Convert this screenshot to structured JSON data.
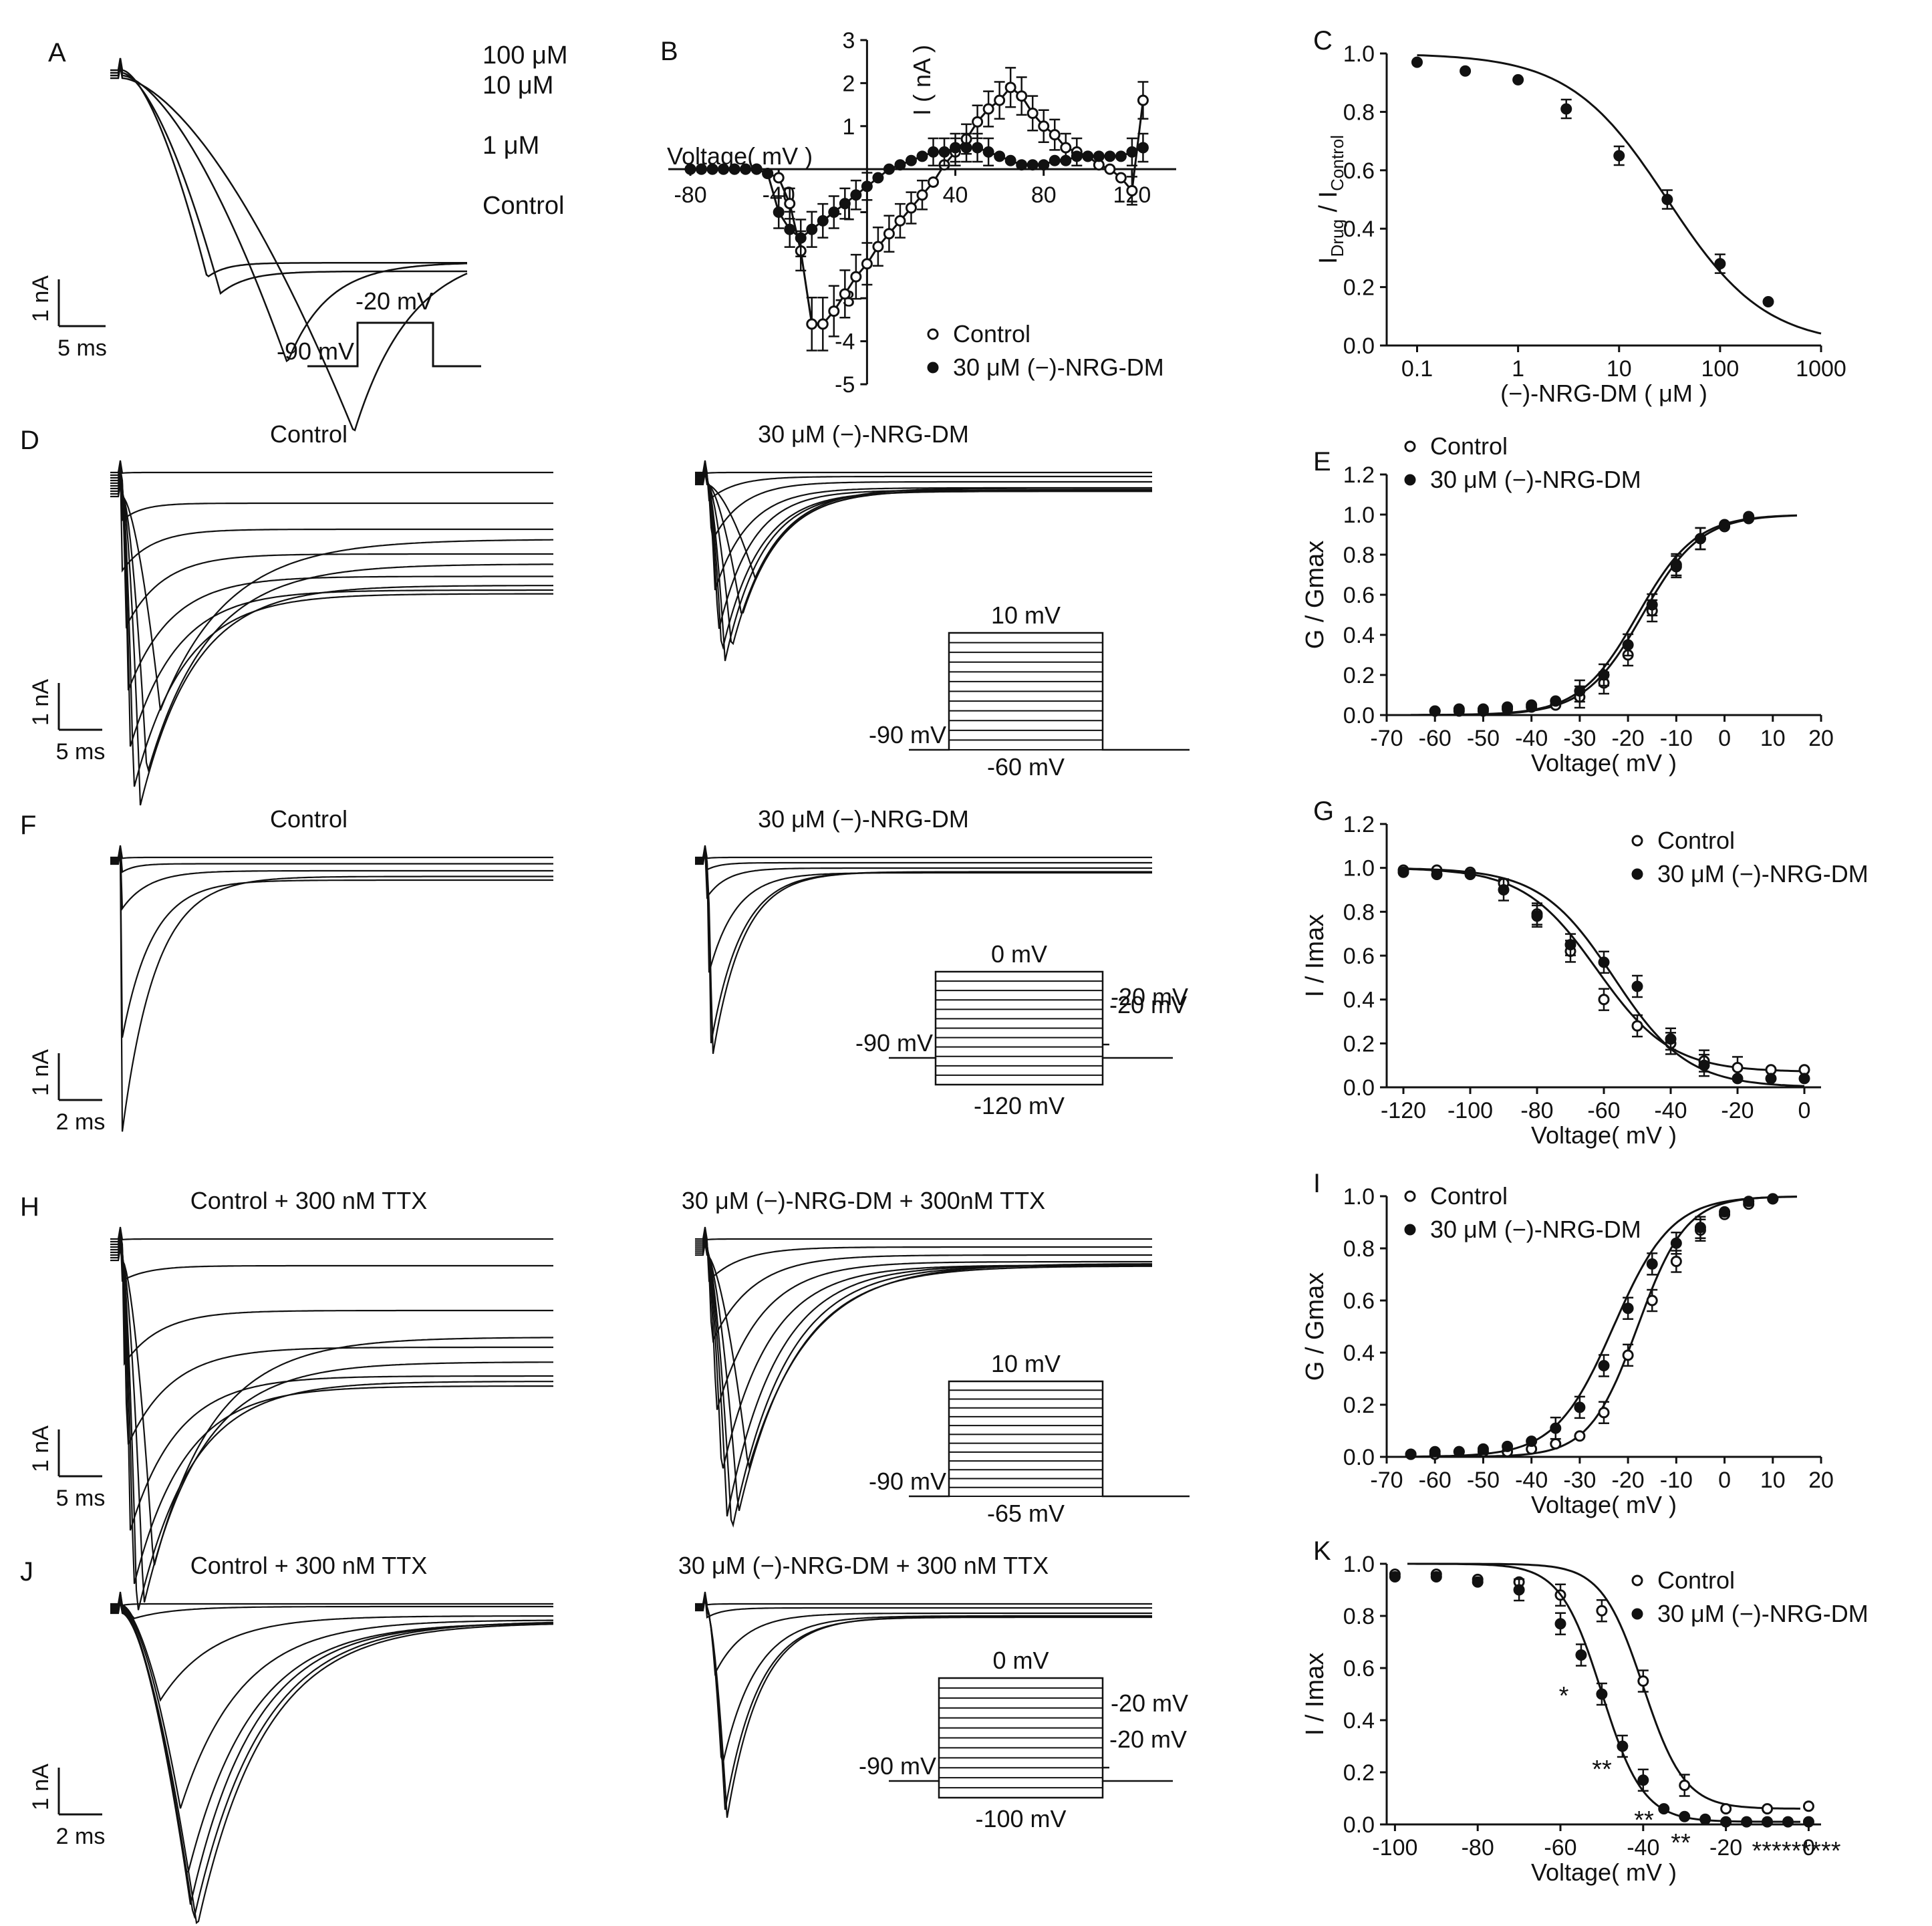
{
  "panels": {
    "A": {
      "letter": "A",
      "labels": [
        "100 μM",
        "10 μM",
        "1 μM",
        "Control"
      ],
      "scale_current": "1 nA",
      "scale_time": "5 ms",
      "protocol": {
        "step": "-20 mV",
        "hold": "-90 mV"
      }
    },
    "D": {
      "letter": "D",
      "left_title": "Control",
      "right_title": "30 μM (−)-NRG-DM",
      "scale_current": "1 nA",
      "scale_time": "5 ms",
      "protocol": {
        "top": "10 mV",
        "bottom": "-60 mV",
        "hold": "-90 mV"
      }
    },
    "F": {
      "letter": "F",
      "left_title": "Control",
      "right_title": "30 μM (−)-NRG-DM",
      "scale_current": "1 nA",
      "scale_time": "2 ms",
      "protocol": {
        "top": "0 mV",
        "bottom": "-120 mV",
        "hold": "-90 mV",
        "test": "-20 mV"
      }
    },
    "H": {
      "letter": "H",
      "left_title": "Control + 300 nM TTX",
      "right_title": "30 μM (−)-NRG-DM + 300nM TTX",
      "scale_current": "1 nA",
      "scale_time": "5 ms",
      "protocol": {
        "top": "10 mV",
        "bottom": "-65 mV",
        "hold": "-90 mV"
      }
    },
    "J": {
      "letter": "J",
      "left_title": "Control + 300 nM TTX",
      "right_title": "30 μM (−)-NRG-DM + 300 nM TTX",
      "scale_current": "1 nA",
      "scale_time": "2 ms",
      "protocol": {
        "top": "0 mV",
        "bottom": "-100 mV",
        "hold": "-90 mV",
        "test": "-20 mV"
      }
    }
  },
  "chart_data": [
    {
      "id": "B",
      "letter": "B",
      "type": "line",
      "xlabel": "Voltage( mV )",
      "ylabel": "I ( nA )",
      "xlim": [
        -90,
        140
      ],
      "ylim": [
        -5,
        3
      ],
      "xticks": [
        -80,
        -40,
        40,
        80,
        120
      ],
      "yticks": [
        -5,
        -4,
        -3,
        -1,
        1,
        2,
        3
      ],
      "series": [
        {
          "name": "Control",
          "marker": "open",
          "x": [
            -80,
            -75,
            -70,
            -65,
            -60,
            -55,
            -50,
            -45,
            -40,
            -35,
            -30,
            -25,
            -20,
            -15,
            -10,
            -5,
            0,
            5,
            10,
            15,
            20,
            25,
            30,
            35,
            40,
            45,
            50,
            55,
            60,
            65,
            70,
            75,
            80,
            85,
            90,
            95,
            100,
            105,
            110,
            115,
            120,
            125
          ],
          "y": [
            0,
            0,
            0,
            0,
            0,
            0,
            0,
            -0.1,
            -0.2,
            -0.8,
            -1.9,
            -3.6,
            -3.6,
            -3.3,
            -2.9,
            -2.5,
            -2.2,
            -1.8,
            -1.5,
            -1.2,
            -0.9,
            -0.6,
            -0.3,
            0.1,
            0.4,
            0.7,
            1.1,
            1.4,
            1.6,
            1.9,
            1.7,
            1.3,
            1.0,
            0.8,
            0.5,
            0.4,
            0.3,
            0.1,
            0,
            -0.2,
            -0.5,
            1.6
          ]
        },
        {
          "name": "30 μM (−)-NRG-DM",
          "marker": "filled",
          "x": [
            -80,
            -75,
            -70,
            -65,
            -60,
            -55,
            -50,
            -45,
            -40,
            -35,
            -30,
            -25,
            -20,
            -15,
            -10,
            -5,
            0,
            5,
            10,
            15,
            20,
            25,
            30,
            35,
            40,
            45,
            50,
            55,
            60,
            65,
            70,
            75,
            80,
            85,
            90,
            95,
            100,
            105,
            110,
            115,
            120,
            125
          ],
          "y": [
            0,
            0,
            0,
            0,
            0,
            0,
            0,
            -0.1,
            -1.0,
            -1.4,
            -1.6,
            -1.4,
            -1.2,
            -1.0,
            -0.8,
            -0.6,
            -0.4,
            -0.2,
            0,
            0.1,
            0.2,
            0.3,
            0.4,
            0.4,
            0.5,
            0.5,
            0.5,
            0.4,
            0.3,
            0.2,
            0.1,
            0.1,
            0.1,
            0.2,
            0.2,
            0.3,
            0.3,
            0.3,
            0.3,
            0.3,
            0.4,
            0.5
          ]
        }
      ],
      "legend": [
        "Control",
        "30 μM (−)-NRG-DM"
      ]
    },
    {
      "id": "C",
      "letter": "C",
      "type": "scatter",
      "xlabel": "(−)-NRG-DM ( μM )",
      "ylabel_main": "I",
      "ylabel_sub1": "Drug",
      "ylabel_sep": " / I",
      "ylabel_sub2": "Control",
      "xscale": "log",
      "xlim": [
        0.05,
        1000
      ],
      "ylim": [
        0,
        1.0
      ],
      "xticks": [
        0.1,
        1,
        10,
        100,
        1000
      ],
      "xticklabels": [
        "0.1",
        "1",
        "10",
        "100",
        "1000"
      ],
      "yticks": [
        0.0,
        0.2,
        0.4,
        0.6,
        0.8,
        1.0
      ],
      "yticklabels": [
        "0.0",
        "0.2",
        "0.4",
        "0.6",
        "0.8",
        "1.0"
      ],
      "x": [
        0.1,
        0.3,
        1,
        3,
        10,
        30,
        100,
        300
      ],
      "y": [
        0.97,
        0.94,
        0.91,
        0.81,
        0.65,
        0.5,
        0.28,
        0.15
      ],
      "fit": {
        "ic50": 30,
        "hill": 0.9
      }
    },
    {
      "id": "E",
      "letter": "E",
      "type": "scatter",
      "xlabel": "Voltage( mV )",
      "ylabel": "G / Gmax",
      "xlim": [
        -70,
        20
      ],
      "ylim": [
        0,
        1.2
      ],
      "xticks": [
        -70,
        -60,
        -50,
        -40,
        -30,
        -20,
        -10,
        0,
        10,
        20
      ],
      "yticks": [
        0.0,
        0.2,
        0.4,
        0.6,
        0.8,
        1.0,
        1.2
      ],
      "yticklabels": [
        "0.0",
        "0.2",
        "0.4",
        "0.6",
        "0.8",
        "1.0",
        "1.2"
      ],
      "series": [
        {
          "name": "Control",
          "marker": "open",
          "x": [
            -60,
            -55,
            -50,
            -45,
            -40,
            -35,
            -30,
            -25,
            -20,
            -15,
            -10,
            -5,
            0,
            5
          ],
          "y": [
            0.02,
            0.02,
            0.02,
            0.03,
            0.04,
            0.05,
            0.09,
            0.16,
            0.3,
            0.52,
            0.74,
            0.88,
            0.94,
            0.99
          ],
          "v_half": -17,
          "k": 6
        },
        {
          "name": "30 μM (−)-NRG-DM",
          "marker": "filled",
          "x": [
            -60,
            -55,
            -50,
            -45,
            -40,
            -35,
            -30,
            -25,
            -20,
            -15,
            -10,
            -5,
            0,
            5
          ],
          "y": [
            0.02,
            0.03,
            0.03,
            0.04,
            0.05,
            0.07,
            0.12,
            0.2,
            0.35,
            0.55,
            0.75,
            0.88,
            0.95,
            0.98
          ],
          "v_half": -18,
          "k": 6
        }
      ],
      "legend": [
        "Control",
        "30 μM (−)-NRG-DM"
      ]
    },
    {
      "id": "G",
      "letter": "G",
      "type": "scatter",
      "xlabel": "Voltage( mV )",
      "ylabel": "I / Imax",
      "xlim": [
        -125,
        5
      ],
      "ylim": [
        0,
        1.2
      ],
      "xticks": [
        -120,
        -100,
        -80,
        -60,
        -40,
        -20,
        0
      ],
      "yticks": [
        0.0,
        0.2,
        0.4,
        0.6,
        0.8,
        1.0,
        1.2
      ],
      "yticklabels": [
        "0.0",
        "0.2",
        "0.4",
        "0.6",
        "0.8",
        "1.0",
        "1.2"
      ],
      "series": [
        {
          "name": "Control",
          "marker": "open",
          "x": [
            -120,
            -110,
            -100,
            -90,
            -80,
            -70,
            -60,
            -50,
            -40,
            -30,
            -20,
            -10,
            0
          ],
          "y": [
            0.99,
            0.99,
            0.98,
            0.93,
            0.79,
            0.62,
            0.4,
            0.28,
            0.2,
            0.12,
            0.09,
            0.08,
            0.08
          ],
          "v_half": -62,
          "k": 11,
          "base": 0.07
        },
        {
          "name": "30 μM (−)-NRG-DM",
          "marker": "filled",
          "x": [
            -120,
            -110,
            -100,
            -90,
            -80,
            -70,
            -60,
            -50,
            -40,
            -30,
            -20,
            -10,
            0
          ],
          "y": [
            0.98,
            0.97,
            0.97,
            0.9,
            0.78,
            0.65,
            0.57,
            0.46,
            0.22,
            0.1,
            0.04,
            0.04,
            0.04
          ],
          "v_half": -57,
          "k": 11,
          "base": 0.0
        }
      ],
      "legend": [
        "Control",
        "30 μM (−)-NRG-DM"
      ]
    },
    {
      "id": "I",
      "letter": "I",
      "type": "scatter",
      "xlabel": "Voltage( mV )",
      "ylabel": "G / Gmax",
      "xlim": [
        -70,
        20
      ],
      "ylim": [
        0,
        1.0
      ],
      "xticks": [
        -70,
        -60,
        -50,
        -40,
        -30,
        -20,
        -10,
        0,
        10,
        20
      ],
      "yticks": [
        0.0,
        0.2,
        0.4,
        0.6,
        0.8,
        1.0
      ],
      "yticklabels": [
        "0.0",
        "0.2",
        "0.4",
        "0.6",
        "0.8",
        "1.0"
      ],
      "series": [
        {
          "name": "Control",
          "marker": "open",
          "x": [
            -65,
            -60,
            -55,
            -50,
            -45,
            -40,
            -35,
            -30,
            -25,
            -20,
            -15,
            -10,
            -5,
            0,
            5,
            10
          ],
          "y": [
            0.01,
            0.01,
            0.02,
            0.02,
            0.02,
            0.03,
            0.05,
            0.08,
            0.17,
            0.39,
            0.6,
            0.75,
            0.87,
            0.93,
            0.97,
            0.99
          ],
          "v_half": -18,
          "k": 5
        },
        {
          "name": "30 μM (−)-NRG-DM",
          "marker": "filled",
          "x": [
            -65,
            -60,
            -55,
            -50,
            -45,
            -40,
            -35,
            -30,
            -25,
            -20,
            -15,
            -10,
            -5,
            0,
            5,
            10
          ],
          "y": [
            0.01,
            0.02,
            0.02,
            0.03,
            0.04,
            0.06,
            0.11,
            0.19,
            0.35,
            0.57,
            0.74,
            0.82,
            0.88,
            0.94,
            0.98,
            0.99
          ],
          "v_half": -23,
          "k": 6
        }
      ],
      "legend": [
        "Control",
        "30 μM (−)-NRG-DM"
      ]
    },
    {
      "id": "K",
      "letter": "K",
      "type": "scatter",
      "xlabel": "Voltage( mV )",
      "ylabel": "I / Imax",
      "xlim": [
        -102,
        3
      ],
      "ylim": [
        0,
        1.0
      ],
      "xticks": [
        -100,
        -80,
        -60,
        -40,
        -20,
        0
      ],
      "yticks": [
        0.0,
        0.2,
        0.4,
        0.6,
        0.8,
        1.0
      ],
      "yticklabels": [
        "0.0",
        "0.2",
        "0.4",
        "0.6",
        "0.8",
        "1.0"
      ],
      "series": [
        {
          "name": "Control",
          "marker": "open",
          "x": [
            -100,
            -90,
            -80,
            -70,
            -60,
            -50,
            -40,
            -30,
            -20,
            -10,
            0
          ],
          "y": [
            0.96,
            0.96,
            0.94,
            0.93,
            0.88,
            0.82,
            0.55,
            0.15,
            0.06,
            0.06,
            0.07
          ],
          "v_half": -40,
          "k": 5,
          "base": 0.06
        },
        {
          "name": "30 μM (−)-NRG-DM",
          "marker": "filled",
          "x": [
            -100,
            -90,
            -80,
            -70,
            -60,
            -55,
            -50,
            -45,
            -40,
            -35,
            -30,
            -25,
            -20,
            -15,
            -10,
            -5,
            0
          ],
          "y": [
            0.95,
            0.95,
            0.93,
            0.9,
            0.77,
            0.65,
            0.5,
            0.3,
            0.17,
            0.06,
            0.03,
            0.02,
            0.01,
            0.01,
            0.01,
            0.01,
            0.01
          ],
          "v_half": -50,
          "k": 5,
          "base": 0.01
        }
      ],
      "legend": [
        "Control",
        "30 μM (−)-NRG-DM"
      ],
      "annotations": [
        "*",
        "**",
        "**",
        "**",
        "*********"
      ]
    }
  ]
}
